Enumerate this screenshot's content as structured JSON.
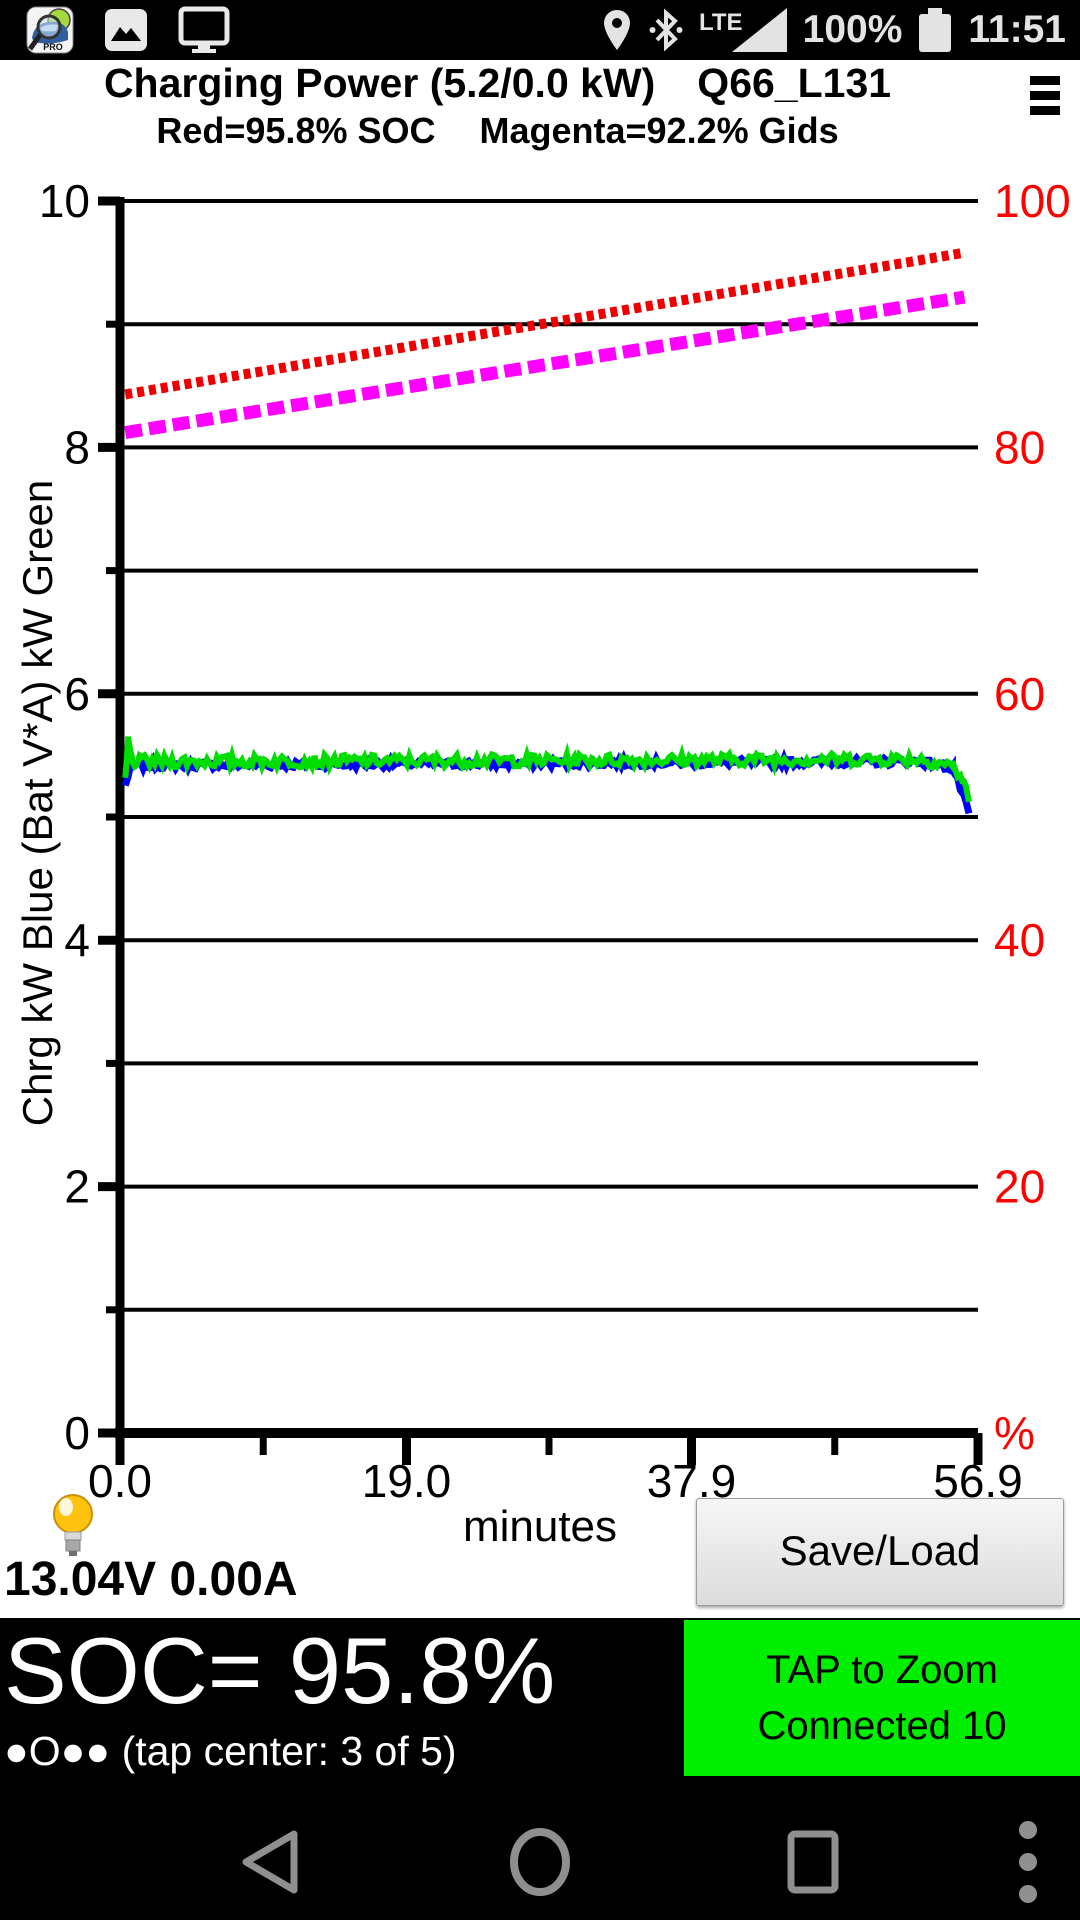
{
  "status_bar": {
    "time": "11:51",
    "battery_level": "100%",
    "network_label": "LTE",
    "app_icon_label": "PRO"
  },
  "header": {
    "title": "Charging Power (5.2/0.0 kW)",
    "session_id": "Q66_L131",
    "legend_red": "Red=95.8% SOC",
    "legend_magenta": "Magenta=92.2% Gids"
  },
  "chart_data": {
    "type": "line",
    "title": "Charging Power (5.2/0.0 kW)",
    "legend": [
      "Red=95.8% SOC",
      "Magenta=92.2% Gids"
    ],
    "legend_position": "top",
    "grid": true,
    "xlabel": "minutes",
    "ylabel_left": "Chrg kW Blue  (Bat V*A) kW Green",
    "ylabel_right": "%",
    "xlim": [
      0,
      56.9
    ],
    "ylim_left": [
      0,
      10
    ],
    "ylim_right": [
      0,
      100
    ],
    "right_axis_color": "#ff0000",
    "gridline_values": [
      1,
      2,
      3,
      4,
      5,
      6,
      7,
      8,
      9,
      10
    ],
    "x_major_ticks": [
      {
        "v": 0.0,
        "label": "0.0"
      },
      {
        "v": 19.0,
        "label": "19.0"
      },
      {
        "v": 37.9,
        "label": "37.9"
      },
      {
        "v": 56.9,
        "label": "56.9"
      }
    ],
    "x_minor_ticks": [
      9.5,
      28.45,
      47.4
    ],
    "y_ticks": [
      {
        "v": 0,
        "left": "0",
        "right": "%"
      },
      {
        "v": 1
      },
      {
        "v": 2,
        "left": "2",
        "right": "20"
      },
      {
        "v": 3
      },
      {
        "v": 4,
        "left": "4",
        "right": "40"
      },
      {
        "v": 5
      },
      {
        "v": 6,
        "left": "6",
        "right": "60"
      },
      {
        "v": 7
      },
      {
        "v": 8,
        "left": "8",
        "right": "80"
      },
      {
        "v": 9
      },
      {
        "v": 10,
        "left": "10",
        "right": "100"
      }
    ],
    "series": [
      {
        "id": "gids",
        "name": "Gids %",
        "color": "#ff00ff",
        "axis": "right",
        "width": 13,
        "dash": "17 7",
        "points": [
          [
            0.35,
            81.2
          ],
          [
            56.0,
            92.2
          ]
        ]
      },
      {
        "id": "soc",
        "name": "SOC %",
        "color": "#ee0000",
        "axis": "right",
        "width": 10,
        "dash": "7 5",
        "points": [
          [
            0.35,
            84.3
          ],
          [
            56.0,
            95.8
          ]
        ]
      },
      {
        "id": "chrg-kw",
        "name": "Chrg kW",
        "color": "#0000ff",
        "axis": "left",
        "width": 7,
        "jitter": 0.03,
        "points": [
          [
            0.35,
            5.25
          ],
          [
            0.7,
            5.42
          ],
          [
            53.0,
            5.45
          ],
          [
            55.2,
            5.4
          ],
          [
            55.9,
            5.18
          ],
          [
            56.3,
            5.02
          ]
        ]
      },
      {
        "id": "bat-kw",
        "name": "Bat V*A kW",
        "color": "#00dd00",
        "axis": "left",
        "width": 6,
        "jitter": 0.05,
        "points": [
          [
            0.35,
            5.3
          ],
          [
            0.55,
            5.62
          ],
          [
            0.8,
            5.45
          ],
          [
            53.0,
            5.47
          ],
          [
            55.2,
            5.42
          ],
          [
            55.9,
            5.3
          ],
          [
            56.3,
            5.12
          ]
        ]
      }
    ]
  },
  "readout": {
    "voltage_current": "13.04V 0.00A"
  },
  "actions": {
    "save_load": "Save/Load",
    "zoom_line1": "TAP to Zoom",
    "zoom_line2": "Connected 10"
  },
  "soc_panel": {
    "soc": "SOC= 95.8%",
    "pager": "●O●● (tap center: 3 of 5)"
  }
}
